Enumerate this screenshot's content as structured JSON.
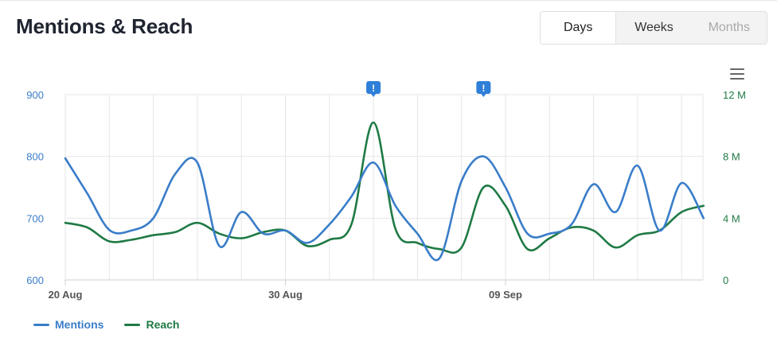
{
  "header": {
    "title": "Mentions & Reach"
  },
  "range_toggle": {
    "options": [
      "Days",
      "Weeks",
      "Months"
    ],
    "selected": "Days",
    "disabled": [
      "Months"
    ]
  },
  "menu": {
    "icon": "hamburger-menu-icon"
  },
  "markers": {
    "icon": "alert-flag-icon",
    "label": "!",
    "dates": [
      "2023-09-03",
      "2023-09-08"
    ]
  },
  "colors": {
    "mentions": "#3a7dc9",
    "reach": "#1f7a45",
    "grid": "#e6e6e6"
  },
  "chart_data": {
    "type": "line",
    "title": "",
    "xlabel": "",
    "ylabel": "",
    "x_start": "2023-08-20",
    "x_ticks": [
      {
        "date": "2023-08-20",
        "label": "20 Aug"
      },
      {
        "date": "2023-08-30",
        "label": "30 Aug"
      },
      {
        "date": "2023-09-09",
        "label": "09 Sep"
      }
    ],
    "left_axis": {
      "min": 600,
      "max": 900,
      "ticks": [
        600,
        700,
        800,
        900
      ],
      "tick_labels": [
        "600",
        "700",
        "800",
        "900"
      ]
    },
    "right_axis": {
      "min": 0,
      "max": 12000000,
      "ticks": [
        0,
        4000000,
        8000000,
        12000000
      ],
      "tick_labels": [
        "0",
        "4 M",
        "8 M",
        "12 M"
      ]
    },
    "grid": true,
    "legend_position": "bottom-left",
    "x": [
      "2023-08-20",
      "2023-08-21",
      "2023-08-22",
      "2023-08-23",
      "2023-08-24",
      "2023-08-25",
      "2023-08-26",
      "2023-08-27",
      "2023-08-28",
      "2023-08-29",
      "2023-08-30",
      "2023-08-31",
      "2023-09-01",
      "2023-09-02",
      "2023-09-03",
      "2023-09-04",
      "2023-09-05",
      "2023-09-06",
      "2023-09-07",
      "2023-09-08",
      "2023-09-09",
      "2023-09-10",
      "2023-09-11",
      "2023-09-12",
      "2023-09-13",
      "2023-09-14",
      "2023-09-15",
      "2023-09-16",
      "2023-09-17",
      "2023-09-18"
    ],
    "series": [
      {
        "name": "Mentions",
        "axis": "left",
        "values": [
          797,
          740,
          681,
          680,
          700,
          772,
          790,
          655,
          710,
          675,
          680,
          660,
          690,
          735,
          790,
          720,
          675,
          635,
          760,
          800,
          750,
          675,
          675,
          690,
          755,
          710,
          785,
          680,
          757,
          700
        ]
      },
      {
        "name": "Reach",
        "axis": "right",
        "values": [
          3700000,
          3400000,
          2500000,
          2600000,
          2900000,
          3100000,
          3700000,
          3000000,
          2700000,
          3100000,
          3200000,
          2200000,
          2600000,
          3600000,
          10200000,
          3300000,
          2400000,
          2000000,
          2100000,
          6000000,
          4800000,
          2000000,
          2700000,
          3400000,
          3200000,
          2100000,
          2900000,
          3200000,
          4400000,
          4800000
        ]
      }
    ]
  }
}
